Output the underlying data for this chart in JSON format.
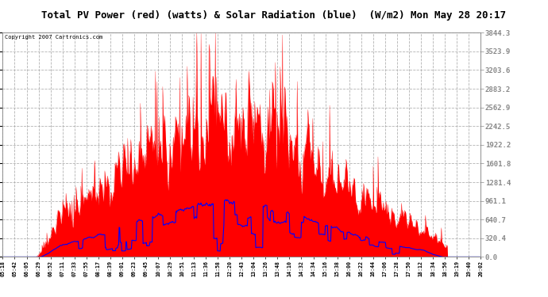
{
  "title": "Total PV Power (red) (watts) & Solar Radiation (blue)  (W/m2) Mon May 28 20:17",
  "copyright": "Copyright 2007 Cartronics.com",
  "bg_color": "#ffffff",
  "plot_bg_color": "#ffffff",
  "grid_color": "#aaaaaa",
  "title_bg": "#ffffff",
  "title_color": "#000000",
  "ymin": 0.0,
  "ymax": 3844.3,
  "yticks": [
    0.0,
    320.4,
    640.7,
    961.1,
    1281.4,
    1601.8,
    1922.2,
    2242.5,
    2562.9,
    2883.2,
    3203.6,
    3523.9,
    3844.3
  ],
  "xtick_labels": [
    "05:18",
    "05:42",
    "06:05",
    "06:29",
    "06:52",
    "07:11",
    "07:33",
    "07:55",
    "08:17",
    "08:39",
    "09:01",
    "09:23",
    "09:45",
    "10:07",
    "10:29",
    "10:51",
    "11:13",
    "11:36",
    "11:58",
    "12:20",
    "12:43",
    "13:04",
    "13:26",
    "13:48",
    "14:10",
    "14:32",
    "14:34",
    "15:16",
    "15:38",
    "16:00",
    "16:22",
    "16:44",
    "17:06",
    "17:28",
    "17:50",
    "18:12",
    "18:34",
    "18:56",
    "19:19",
    "19:40",
    "20:02"
  ],
  "red_color": "#ff0000",
  "blue_color": "#0000ff",
  "n_points": 900,
  "solar_base_max": 950,
  "pv_envelope_seed": 0,
  "solar_seed": 1
}
